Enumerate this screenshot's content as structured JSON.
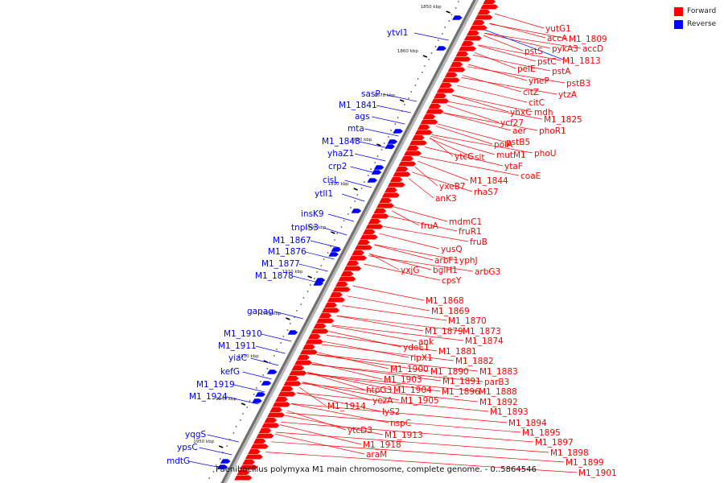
{
  "legend": {
    "forward_label": "Forward",
    "reverse_label": "Reverse",
    "forward_color": "#ff0000",
    "reverse_color": "#0000ff"
  },
  "caption": "Paenibacillus polymyxa M1 main chromosome, complete genome. - 0..5864546",
  "kbp_ticks": [
    "1850 kbp",
    "1860 kbp",
    "1870 kbp",
    "1880 kbp",
    "1890 kbp",
    "1900 kbp",
    "1910 kbp",
    "1920 kbp",
    "1930 kbp",
    "1940 kbp",
    "1950 kbp"
  ],
  "reverse_genes": [
    "ytvI1",
    "sasP",
    "M1_1841",
    "ags",
    "mta",
    "M1_1848",
    "yhaZ1",
    "crp2",
    "cisL",
    "ytlI1",
    "insK9",
    "tnpIS3",
    "M1_1867",
    "M1_1876",
    "M1_1877",
    "M1_1878",
    "gapag",
    "M1_1910",
    "M1_1911",
    "yiaC",
    "kefG",
    "M1_1919",
    "M1_1924",
    "yqgS",
    "ypsC",
    "mdtG"
  ],
  "forward_genes_top": [
    "yutG1",
    "accA",
    "M1_1809",
    "pykA3",
    "accD",
    "pstS",
    "M1_1813",
    "pstC",
    "pstA",
    "pelE",
    "yneP",
    "pstB3",
    "citZ",
    "ytzA",
    "citC",
    "yhxC",
    "mdh",
    "ycf27",
    "M1_1825",
    "aer",
    "phoR1",
    "pstB5",
    "polA",
    "phoU",
    "mutM1",
    "ytcG",
    "slt",
    "ytaF",
    "coaE",
    "M1_1844",
    "yxeB7",
    "rhaS7",
    "anK3"
  ],
  "forward_genes_middle": [
    "mdmC1",
    "fruA",
    "fruR1",
    "fruB",
    "yusQ",
    "arbF1",
    "yphJ",
    "arbG3",
    "bglH1",
    "yxjG",
    "cpsY"
  ],
  "forward_genes_bottom": [
    "M1_1868",
    "M1_1869",
    "M1_1870",
    "M1_1879",
    "M1_1873",
    "ank",
    "M1_1874",
    "ydeE1",
    "M1_1881",
    "ripX1",
    "M1_1882",
    "M1_1900",
    "M1_1890",
    "M1_1883",
    "M1_1903",
    "M1_1891",
    "parB3",
    "htpG3",
    "M1_1904",
    "M1_1896",
    "M1_1888",
    "yezA",
    "M1_1905",
    "M1_1892",
    "M1_1914",
    "lyS2",
    "M1_1893",
    "nspC",
    "M1_1894",
    "ytcD3",
    "M1_1913",
    "M1_1895",
    "M1_1918",
    "M1_1897",
    "araM",
    "M1_1898",
    "M1_1899",
    "M1_1901"
  ]
}
